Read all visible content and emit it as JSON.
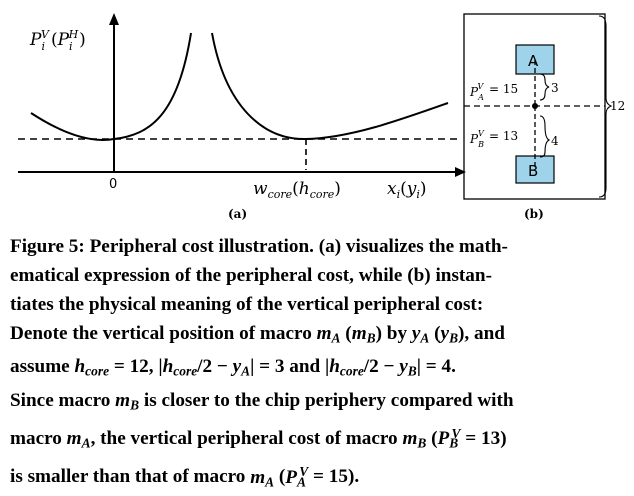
{
  "figure_a": {
    "y_axis_label": "P_i^V (P_i^H)",
    "origin_tick": "0",
    "x_marker_label": "w_core(h_core)",
    "x_axis_label": "x_i(y_i)",
    "sublabel": "(a)"
  },
  "figure_b": {
    "macro_top": "A",
    "macro_bottom": "B",
    "cost_top": "= 15",
    "cost_bottom": "= 13",
    "dist_top": "3",
    "dist_bottom": "4",
    "height_label": "12",
    "sublabel": "(b)"
  },
  "caption": {
    "line1": "Figure 5: Peripheral cost illustration. (a) visualizes the math-",
    "line2": "ematical expression of the peripheral cost, while (b) instan-",
    "line3": "tiates the physical meaning of the vertical peripheral cost:",
    "line4a": "Denote the vertical position of macro ",
    "line4b": " by ",
    "line4c": ", and",
    "line5a": "assume ",
    "line5b": " = 12, |",
    "line5c": "/2 − ",
    "line5d": "| = 3 and |",
    "line5e": "/2 − ",
    "line5f": "| = 4.",
    "line6a": "Since macro ",
    "line6b": " is closer to the chip periphery compared with",
    "line7a": "macro ",
    "line7b": ", the vertical peripheral cost of macro ",
    "line7c": " (",
    "line7d": " = 13)",
    "line8a": "is smaller than that of macro ",
    "line8b": " (",
    "line8c": " = 15)."
  }
}
